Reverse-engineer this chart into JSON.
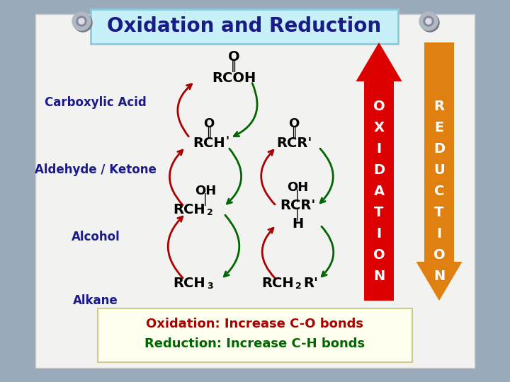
{
  "title": "Oxidation and Reduction",
  "title_box_color": "#c8f0f8",
  "title_text_color": "#1a1a88",
  "bg_color": "#9aaabb",
  "paper_color": "#f2f2f0",
  "label_color": "#1a1a88",
  "oxidation_arrow_color": "#dd0000",
  "reduction_arrow_color": "#e08010",
  "curved_arrow_red": "#aa0000",
  "curved_arrow_green": "#006600",
  "bottom_box_color": "#fffff0",
  "oxidation_label": "Oxidation: Increase C-O bonds",
  "reduction_label": "Reduction: Increase C-H bonds",
  "oxidation_label_color": "#aa0000",
  "reduction_label_color": "#006600",
  "row_labels": [
    "Carboxylic Acid",
    "Aldehyde / Ketone",
    "Alcohol",
    "Alkane"
  ],
  "pin_color": "#b0b8c4",
  "pin_inner_color": "#888898"
}
